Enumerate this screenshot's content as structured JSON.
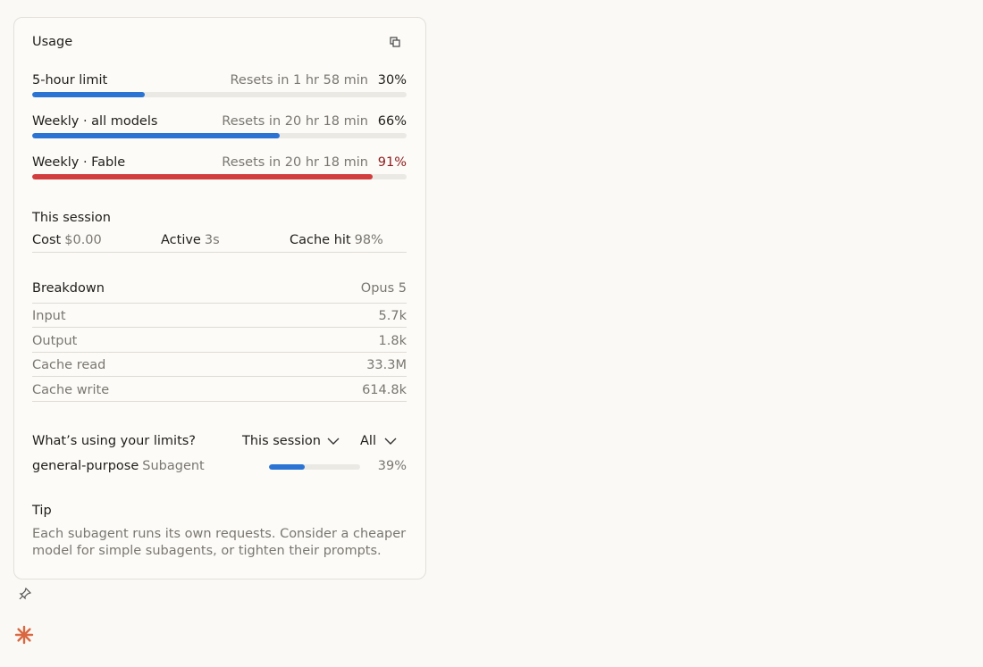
{
  "header": {
    "title": "Usage"
  },
  "limits": [
    {
      "label": "5-hour limit",
      "reset": "Resets in 1 hr 58 min",
      "value": 30,
      "value_label": "30%"
    },
    {
      "label": "Weekly · all models",
      "reset": "Resets in 20 hr 18 min",
      "value": 66,
      "value_label": "66%"
    },
    {
      "label": "Weekly · Fable",
      "reset": "Resets in 20 hr 18 min",
      "value": 91,
      "value_label": "91%"
    }
  ],
  "session": {
    "title": "This session",
    "items": [
      {
        "label": "Cost",
        "value": "$0.00"
      },
      {
        "label": "Active",
        "value": "3s"
      },
      {
        "label": "Cache hit",
        "value": "98%"
      }
    ]
  },
  "breakdown": {
    "title": "Breakdown",
    "model": "Opus 5",
    "rows": [
      [
        "Input",
        "5.7k"
      ],
      [
        "Output",
        "1.8k"
      ],
      [
        "Cache read",
        "33.3M"
      ],
      [
        "Cache write",
        "614.8k"
      ]
    ]
  },
  "usage_sources": {
    "title": "What’s using your limits?",
    "filters": [
      "This session",
      "All"
    ],
    "items": [
      {
        "name": "general-purpose",
        "kind": "Subagent",
        "value": 39,
        "value_label": "39%"
      }
    ]
  },
  "tip": {
    "title": "Tip",
    "text": "Each subagent runs its own requests. Consider a cheaper model for simple subagents, or tighten their prompts."
  }
}
